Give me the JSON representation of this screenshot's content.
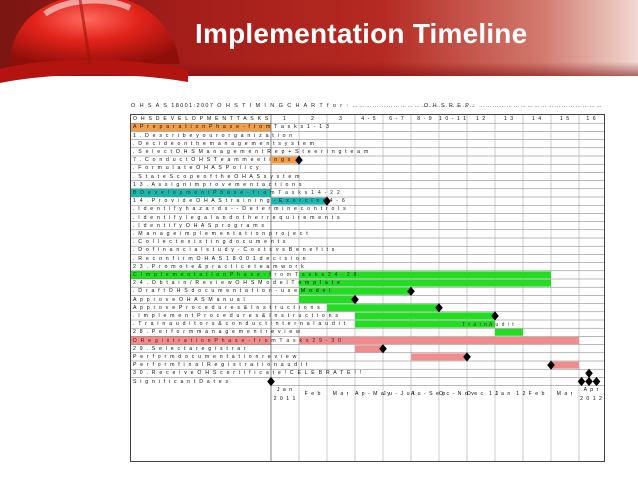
{
  "slide": {
    "title": "Implementation Timeline"
  },
  "sheet": {
    "header_left": "O H S A S  18001:2007  O H S  T I M I N G   C H A R T  f o r  : ………………………………………………",
    "header_right": "O H S  R E P : ………………………………………………"
  },
  "table": {
    "task_header": "O H S D E V E L O P M E N T  T A S K S",
    "columns": [
      "1",
      "2",
      "3",
      "4 - 5",
      "6 - 7",
      "8 - 9",
      "1 0 - 1 1",
      "1 2",
      "1 3",
      "1 4",
      "1 5",
      "1 6"
    ],
    "rows": [
      {
        "label": "A  P r e p a r a t i o n  P h a s e - f r o m  T a s k s  1 - 1 3",
        "fill": "#f39c4a"
      },
      {
        "label": "1 .  D e s c r i b e  y o u r  o r g a n i z a t i o n",
        "fill": ""
      },
      {
        "label": ". D e c i d e  o n  t h e  m a n a g e m e n t  s y s t e m",
        "fill": ""
      },
      {
        "label": ". S e l e c t  O H S  M a n a g e m e n t  R e p + S t e e r i n g  t e a m",
        "fill": ""
      },
      {
        "label": "7 .  C o n d u c t  O H S  T e a m  m e e t i n g s",
        "fill": ""
      },
      {
        "label": ".  F o r m u l a t e  O H A S  P o l i c y",
        "fill": ""
      },
      {
        "label": ". S t a t e  S c o p e  o f  t h e  O H A S  s y s t e m",
        "fill": ""
      },
      {
        "label": "1 3 .  A s s i g n  i m p r o v e m e n t  a c t i o n s",
        "fill": ""
      },
      {
        "label": "B  D e v e l o p m e n t  P h a s e - f r o m  T a s k s  1 4 - 2 2",
        "fill": "#17b8b0"
      },
      {
        "label": "1 4 .  P r o v i d e  O H A S  t r a i n i n g  - E x e r c i s e  4  -  6",
        "fill": ""
      },
      {
        "label": ". I d e n t i f y  h a z a r d s  - -  D e t e r m i n e  c o n t r o l s",
        "fill": ""
      },
      {
        "label": ". I d e n t i f y  l e g a l  a n d  o t h e r  r e q u i r e m e n t s",
        "fill": ""
      },
      {
        "label": ". I d e n t i f y  O H A S  p r o g r a m s",
        "fill": ""
      },
      {
        "label": ". M a n a g e  i m p l e m e n t a t i o n  p r o j e c t",
        "fill": ""
      },
      {
        "label": ". C o l l e c t  e x i s t i n g  d o c u m e n t s",
        "fill": ""
      },
      {
        "label": ". D o  f i n a n c i a l  s t u d y  -  C o s t s  v s  B e n e f i t s",
        "fill": ""
      },
      {
        "label": ". R e c o n f i r m  O H A S  1 8 0 0 1  d e c i s i o n",
        "fill": ""
      },
      {
        "label": "2 3 .  P r o m o t e  &  p r a c t i c e  t e a m w o r k",
        "fill": ""
      },
      {
        "label": "C  I m p l e m e n t a t i o n  P h a s e - f r o m T a s k s  2 4 - 2 8",
        "fill": "#22dd22"
      },
      {
        "label": "2 4 .  O b t a i n  /  R e v i e w  O H S  M o d e l  T e m p l a t e",
        "fill": ""
      },
      {
        "label": ". D r a f t  O H S  d o c u m e n t a t i o n  - u s e  M o d e l",
        "fill": ""
      },
      {
        "label": "     A p p r o v e  O H A S  M a n u a l",
        "fill": ""
      },
      {
        "label": "     A p p r o v e  P r o c e d u r e s  &  I n s t r u c t i o n s",
        "fill": ""
      },
      {
        "label": ". I m p l e m e n t  P r o c e d u r e s  &  I n s t r u c t i o n s",
        "fill": ""
      },
      {
        "label": ". T r a i n  a u d i t o r s  &  c o n d u c t  i n t e r n a l  a u d i t",
        "fill": ""
      },
      {
        "label": "2 8 .  P e r f o r m  m a n a g e m e n t  r e v i e w",
        "fill": ""
      },
      {
        "label": "D  R e g i s t r a t i o n  P h a s e - f r o m  T a s k s  2 9 - 3 0",
        "fill": "#f28c8c"
      },
      {
        "label": "2 9 .  S e l e c t  a  r e g i s t r a r",
        "fill": ""
      },
      {
        "label": "     P e r f o r m  d o c u m e n t a t i o n  r e v i e w",
        "fill": ""
      },
      {
        "label": "     P e r f o r m  f i n a l  R e g i s t r a t i o n  a u d i t",
        "fill": ""
      },
      {
        "label": "3 0 .  R e c e i v e  O H S  c e r t i f i c a t e  !  C E L E B R A T E  ! !",
        "fill": ""
      },
      {
        "label": "S i g n i f i c a n t  D a t e s",
        "fill": ""
      }
    ],
    "months": [
      "J a n\n2 0 1 1",
      "F e b",
      "M a r",
      "A p - M a y",
      "J u - J u l",
      "A u - S e p",
      "O c - N o v",
      "D e c  1 1",
      "J a n  1 2",
      "F e b",
      "M a r",
      "A p r\n2 0 1 2"
    ],
    "bar_labels": {
      "train": "T r a i n",
      "audit": "A u d i t"
    }
  },
  "colors": {
    "orange": "#f39c4a",
    "teal": "#17b8b0",
    "green": "#22dd22",
    "pink": "#f28c8c",
    "milestone": "#000000"
  },
  "gantt": [
    {
      "row": 4,
      "from": 0,
      "to": 1,
      "color": "orange",
      "milestone": 1
    },
    {
      "row": 9,
      "from": 0,
      "to": 2,
      "color": "teal",
      "milestone": 2
    },
    {
      "row": 18,
      "from": 1,
      "to": 10,
      "color": "green"
    },
    {
      "row": 19,
      "from": 1,
      "to": 10,
      "color": "green"
    },
    {
      "row": 20,
      "from": 1,
      "to": 5,
      "color": "green",
      "milestone": 5
    },
    {
      "row": 21,
      "from": 1,
      "to": 3,
      "color": "green",
      "milestone": 3
    },
    {
      "row": 22,
      "from": 2,
      "to": 6,
      "color": "green",
      "milestone": 6
    },
    {
      "row": 23,
      "from": 3,
      "to": 8,
      "color": "green",
      "milestone": 8
    },
    {
      "row": 24,
      "from": 3,
      "to": 8,
      "color": "green"
    },
    {
      "row": 25,
      "from": 8,
      "to": 9,
      "color": "green"
    },
    {
      "row": 26,
      "from": 1,
      "to": 11,
      "color": "pink"
    },
    {
      "row": 27,
      "from": 3,
      "to": 4,
      "color": "pink",
      "milestone": 4
    },
    {
      "row": 28,
      "from": 5,
      "to": 7,
      "color": "pink",
      "milestone": 7
    },
    {
      "row": 29,
      "from": 10,
      "to": 11,
      "color": "pink",
      "milestone": 10
    },
    {
      "row": 30,
      "from": 0,
      "to": 0,
      "color": "",
      "milestone": 11.4
    }
  ],
  "significant_milestones": [
    0,
    11.1,
    11.4,
    11.7
  ]
}
